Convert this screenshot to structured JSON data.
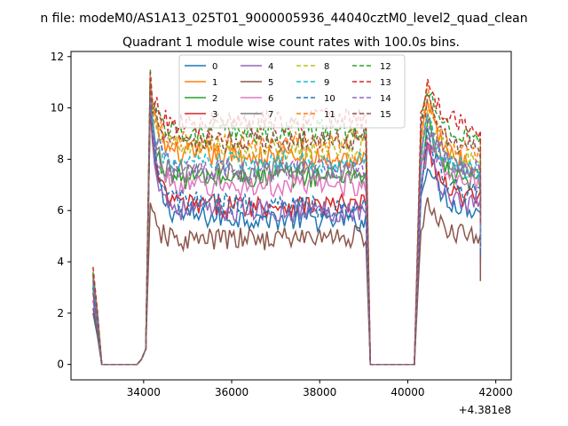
{
  "figure": {
    "suptitle": "n file: modeM0/AS1A13_025T01_9000005936_44040cztM0_level2_quad_clean",
    "title": "Quadrant 1 module wise count rates with 100.0s bins."
  },
  "chart_data": {
    "type": "line",
    "title": "Quadrant 1 module wise count rates with 100.0s bins.",
    "xlabel": "",
    "ylabel": "",
    "x_offset_label": "+4.381e8",
    "xlim": [
      32350,
      42350
    ],
    "ylim": [
      -0.6,
      12.2
    ],
    "x_ticks": [
      34000,
      36000,
      38000,
      40000,
      42000
    ],
    "x_tick_labels": [
      "34000",
      "36000",
      "38000",
      "40000",
      "42000"
    ],
    "y_ticks": [
      0,
      2,
      4,
      6,
      8,
      10,
      12
    ],
    "y_tick_labels": [
      "0",
      "2",
      "4",
      "6",
      "8",
      "10",
      "12"
    ],
    "grid": false,
    "legend_position": "top",
    "x_profile": [
      32850,
      32950,
      33050,
      33150,
      33250,
      33350,
      33450,
      33550,
      33650,
      33750,
      33850,
      33950,
      34050,
      34150
    ],
    "segments": [
      {
        "start": 34150,
        "end": 39050,
        "step": 50
      },
      {
        "start": 40250,
        "end": 41650,
        "step": 50
      }
    ],
    "gap_x": [
      39150,
      39250,
      39350,
      39450,
      39550,
      39650,
      39750,
      39850,
      39950,
      40050,
      40150
    ],
    "series": [
      {
        "name": "0",
        "color": "#1f77b4",
        "dashed": false,
        "start": 2.0,
        "peak": 10.4,
        "plateau": 5.8,
        "end": 5.6,
        "peak2": 8.0,
        "plateau2": 6.0
      },
      {
        "name": "1",
        "color": "#ff7f0e",
        "dashed": false,
        "start": 3.5,
        "peak": 11.2,
        "plateau": 8.2,
        "end": 8.0,
        "peak2": 10.5,
        "plateau2": 7.8
      },
      {
        "name": "2",
        "color": "#2ca02c",
        "dashed": false,
        "start": 3.0,
        "peak": 10.2,
        "plateau": 7.2,
        "end": 7.4,
        "peak2": 9.6,
        "plateau2": 7.0
      },
      {
        "name": "3",
        "color": "#d62728",
        "dashed": false,
        "start": 2.8,
        "peak": 10.0,
        "plateau": 6.2,
        "end": 6.2,
        "peak2": 8.6,
        "plateau2": 6.4
      },
      {
        "name": "4",
        "color": "#9467bd",
        "dashed": false,
        "start": 2.5,
        "peak": 10.6,
        "plateau": 6.0,
        "end": 6.0,
        "peak2": 8.4,
        "plateau2": 6.2
      },
      {
        "name": "5",
        "color": "#8c564b",
        "dashed": false,
        "start": 2.2,
        "peak": 6.3,
        "plateau": 4.8,
        "end": 5.0,
        "peak2": 6.2,
        "plateau2": 5.0
      },
      {
        "name": "6",
        "color": "#e377c2",
        "dashed": false,
        "start": 3.3,
        "peak": 10.8,
        "plateau": 6.9,
        "end": 7.0,
        "peak2": 9.2,
        "plateau2": 7.0
      },
      {
        "name": "7",
        "color": "#7f7f7f",
        "dashed": false,
        "start": 3.1,
        "peak": 10.4,
        "plateau": 7.4,
        "end": 7.6,
        "peak2": 9.4,
        "plateau2": 7.4
      },
      {
        "name": "8",
        "color": "#bcbd22",
        "dashed": true,
        "start": 3.4,
        "peak": 10.9,
        "plateau": 8.4,
        "end": 8.4,
        "peak2": 10.0,
        "plateau2": 8.0
      },
      {
        "name": "9",
        "color": "#17becf",
        "dashed": true,
        "start": 3.2,
        "peak": 10.6,
        "plateau": 7.8,
        "end": 7.9,
        "peak2": 9.6,
        "plateau2": 7.5
      },
      {
        "name": "10",
        "color": "#1f77b4",
        "dashed": true,
        "start": 3.0,
        "peak": 10.1,
        "plateau": 6.4,
        "end": 6.0,
        "peak2": 9.0,
        "plateau2": 6.6
      },
      {
        "name": "11",
        "color": "#ff7f0e",
        "dashed": true,
        "start": 3.6,
        "peak": 11.1,
        "plateau": 8.6,
        "end": 8.8,
        "peak2": 10.6,
        "plateau2": 8.2
      },
      {
        "name": "12",
        "color": "#2ca02c",
        "dashed": true,
        "start": 3.6,
        "peak": 11.5,
        "plateau": 9.0,
        "end": 9.2,
        "peak2": 10.9,
        "plateau2": 8.8
      },
      {
        "name": "13",
        "color": "#d62728",
        "dashed": true,
        "start": 3.8,
        "peak": 11.4,
        "plateau": 9.3,
        "end": 9.6,
        "peak2": 11.3,
        "plateau2": 9.2
      },
      {
        "name": "14",
        "color": "#9467bd",
        "dashed": true,
        "start": 3.3,
        "peak": 10.7,
        "plateau": 7.6,
        "end": 7.6,
        "peak2": 9.8,
        "plateau2": 7.6
      },
      {
        "name": "15",
        "color": "#8c564b",
        "dashed": true,
        "start": 3.5,
        "peak": 11.0,
        "plateau": 8.6,
        "end": 8.8,
        "peak2": 10.4,
        "plateau2": 8.4
      }
    ]
  }
}
